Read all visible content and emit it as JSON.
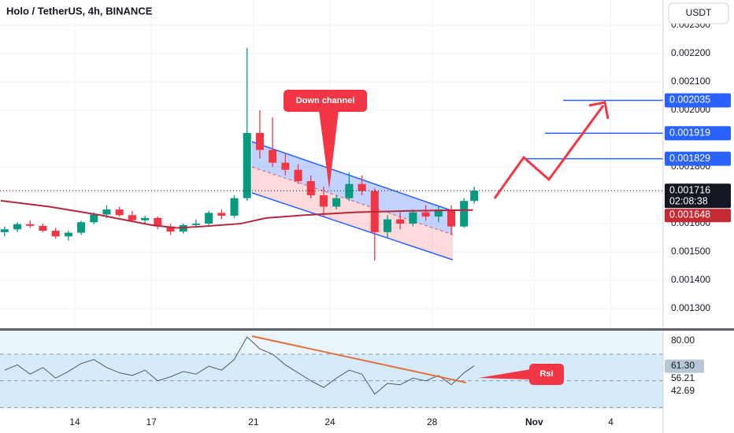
{
  "chart_data": [
    {
      "type": "candlestick",
      "title": "Holo / TetherUS, 4h, BINANCE",
      "currency_button": "USDT",
      "x": [
        11.25,
        11.75,
        12.25,
        12.75,
        13.25,
        13.75,
        14.25,
        14.75,
        15.25,
        15.75,
        16.25,
        16.75,
        17.25,
        17.75,
        18.25,
        18.75,
        19.25,
        19.75,
        20.25,
        20.75,
        21.25,
        21.75,
        22.25,
        22.75,
        23.25,
        23.75,
        24.25,
        24.75,
        25.25,
        25.75,
        26.25,
        26.75,
        27.25,
        27.75,
        28.25,
        28.75,
        29.25,
        29.65
      ],
      "open": [
        0.00157,
        0.00158,
        0.001598,
        0.001592,
        0.001575,
        0.001555,
        0.001568,
        0.001605,
        0.001632,
        0.00165,
        0.00163,
        0.001612,
        0.00162,
        0.00159,
        0.001572,
        0.001595,
        0.0016,
        0.001638,
        0.001628,
        0.00169,
        0.00192,
        0.00186,
        0.001815,
        0.00179,
        0.00175,
        0.0017,
        0.00166,
        0.00169,
        0.00174,
        0.001715,
        0.00157,
        0.001615,
        0.0016,
        0.00164,
        0.001625,
        0.00165,
        0.00159,
        0.00168
      ],
      "high": [
        0.00159,
        0.001605,
        0.001612,
        0.0016,
        0.001585,
        0.001575,
        0.00161,
        0.00164,
        0.001665,
        0.00166,
        0.001645,
        0.001628,
        0.001625,
        0.0016,
        0.0016,
        0.001615,
        0.001645,
        0.00165,
        0.0017,
        0.00222,
        0.002,
        0.001975,
        0.00185,
        0.00181,
        0.00177,
        0.00173,
        0.0017,
        0.00178,
        0.00177,
        0.001725,
        0.00163,
        0.00164,
        0.00165,
        0.001665,
        0.00166,
        0.001665,
        0.00169,
        0.00173
      ],
      "low": [
        0.001555,
        0.00157,
        0.001585,
        0.00157,
        0.001548,
        0.00154,
        0.00156,
        0.001598,
        0.00162,
        0.001625,
        0.001605,
        0.001598,
        0.00158,
        0.00156,
        0.001565,
        0.001585,
        0.001595,
        0.001615,
        0.00162,
        0.00168,
        0.00183,
        0.0018,
        0.00177,
        0.00174,
        0.00169,
        0.001625,
        0.00165,
        0.00168,
        0.0017,
        0.00147,
        0.00155,
        0.00158,
        0.00159,
        0.00161,
        0.001605,
        0.00156,
        0.001585,
        0.00167
      ],
      "close": [
        0.00158,
        0.001598,
        0.001592,
        0.001575,
        0.001555,
        0.001568,
        0.001605,
        0.001632,
        0.00165,
        0.00163,
        0.001612,
        0.00162,
        0.00159,
        0.001572,
        0.001595,
        0.0016,
        0.001638,
        0.001628,
        0.00169,
        0.00192,
        0.00186,
        0.001815,
        0.00179,
        0.00175,
        0.0017,
        0.00166,
        0.00169,
        0.00174,
        0.001715,
        0.00157,
        0.001615,
        0.0016,
        0.00164,
        0.001625,
        0.00165,
        0.00159,
        0.00168,
        0.001716
      ],
      "up_color": "#089981",
      "down_color": "#f23645",
      "xlim": [
        11.07,
        37.05
      ],
      "xticks": [
        14,
        17,
        21,
        24,
        28,
        {
          "value": 32,
          "label": "Nov"
        },
        {
          "value": 35,
          "label": "4"
        }
      ],
      "ylim": [
        0.001228,
        0.002389
      ],
      "yticks": [
        {
          "value": 0.0023,
          "label": "0.002300"
        },
        {
          "value": 0.0022,
          "label": "0.002200"
        },
        {
          "value": 0.0021,
          "label": "0.002100"
        },
        {
          "value": 0.002,
          "label": "0.002000"
        },
        {
          "value": 0.0018,
          "label": "0.001800"
        },
        {
          "value": 0.0016,
          "label": "0.001600"
        },
        {
          "value": 0.0015,
          "label": "0.001500"
        },
        {
          "value": 0.0014,
          "label": "0.001400"
        },
        {
          "value": 0.0013,
          "label": "0.001300"
        }
      ],
      "grid": true,
      "moving_average": {
        "color": "#b2283c",
        "x": [
          11.1,
          13,
          15,
          17,
          18,
          19,
          20.5,
          21.5,
          23,
          25,
          27,
          29.6
        ],
        "values": [
          0.001681,
          0.00166,
          0.00163,
          0.001595,
          0.001585,
          0.00159,
          0.0016,
          0.00162,
          0.00163,
          0.00164,
          0.001645,
          0.001648
        ]
      },
      "last_price": 0.001716,
      "countdown": "02:08:38",
      "ma_price": 0.001648,
      "levels": [
        0.002035,
        0.001919,
        0.001829
      ],
      "level_color": "#2962ff",
      "annotations": [
        "Down channel"
      ]
    },
    {
      "type": "line",
      "color": "#555a66",
      "values": [
        58,
        62,
        55,
        60,
        52,
        57,
        63,
        66,
        60,
        56,
        54,
        58,
        50,
        53,
        57,
        55,
        61,
        58,
        66,
        83,
        74,
        70,
        62,
        56,
        50,
        45,
        52,
        58,
        55,
        40,
        48,
        47,
        52,
        50,
        54,
        47,
        56,
        61.3
      ],
      "ylim": [
        28.5,
        87.7
      ],
      "yticks": [
        {
          "value": 80,
          "label": "80.00"
        }
      ],
      "levels": [
        70,
        50,
        30
      ],
      "readouts": [
        {
          "value": 61.3,
          "label": "61.30"
        },
        56.21,
        42.69
      ],
      "annotations": [
        "Rsi"
      ]
    }
  ]
}
